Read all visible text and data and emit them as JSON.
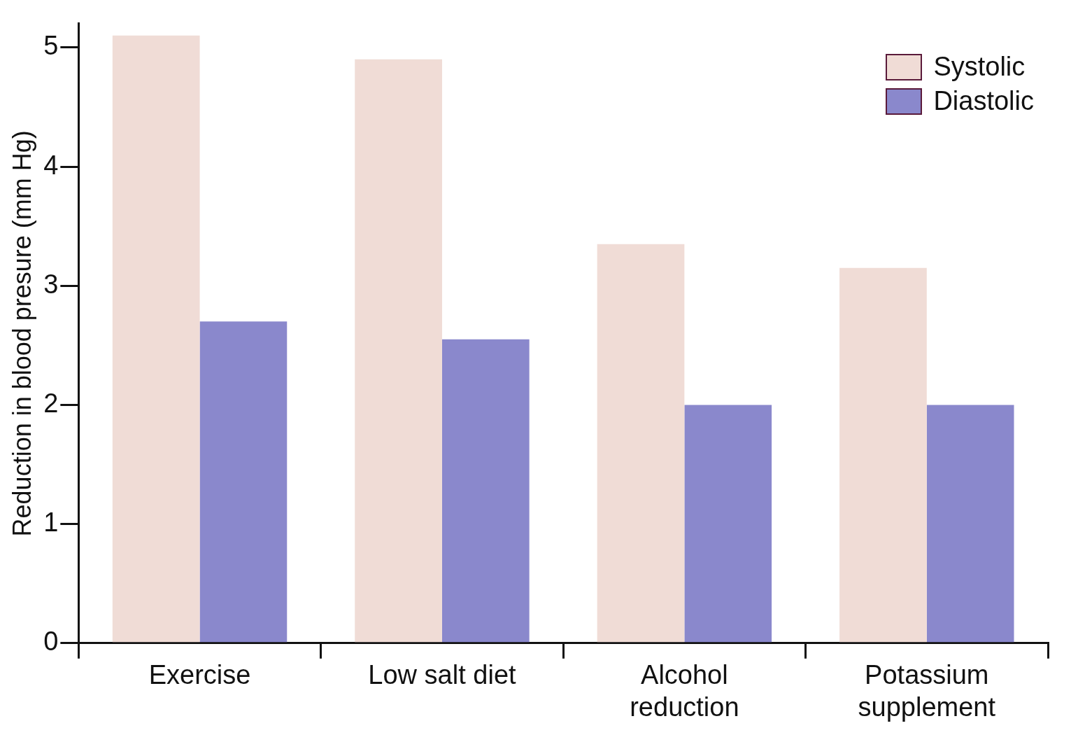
{
  "chart_data": {
    "type": "bar",
    "ylabel": "Reduction in blood presure (mm Hg)",
    "categories": [
      "Exercise",
      "Low salt diet",
      "Alcohol reduction",
      "Potassium supplement"
    ],
    "series": [
      {
        "name": "Systolic",
        "color": "#f0dcd6",
        "values": [
          5.1,
          4.9,
          3.35,
          3.15
        ]
      },
      {
        "name": "Diastolic",
        "color": "#8a88cc",
        "values": [
          2.7,
          2.55,
          2.0,
          2.0
        ]
      }
    ],
    "ylim": [
      0,
      5.2
    ],
    "yticks": [
      0,
      1,
      2,
      3,
      4,
      5
    ],
    "grid": false,
    "legend": "top right"
  }
}
